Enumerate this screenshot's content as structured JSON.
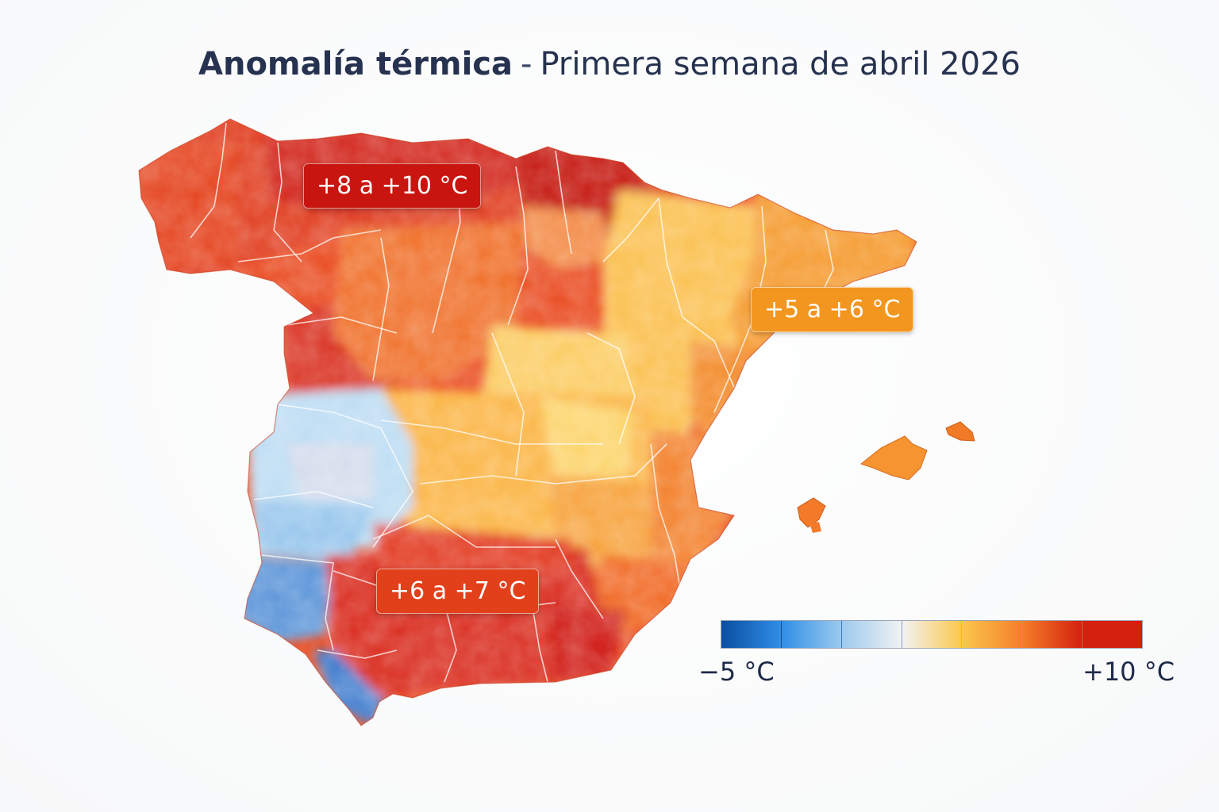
{
  "title": {
    "bold": "Anomalía térmica",
    "separator": "-",
    "rest": "Primera semana de abril 2026"
  },
  "badges": {
    "north": "+8 a +10 °C",
    "east": "+5 a +6 °C",
    "south": "+6 a +7 °C"
  },
  "colors": {
    "north_deep": "#c8150f",
    "north": "#e0401c",
    "center_orange": "#f5922a",
    "center_yellow": "#fbc654",
    "east_orange": "#f49a2c",
    "west_light_blue": "#bcdcf3",
    "southwest_blue": "#5591d6",
    "south_red": "#d9281a",
    "southeast_orange": "#f06d21"
  },
  "legend": {
    "min_label": "−5 °C",
    "max_label": "+10 °C",
    "swatches": [
      "#0a4ea0",
      "#2f8ee6",
      "#9ccaee",
      "#f2f2f2",
      "#fbc84d",
      "#f57f2a",
      "#d4200f"
    ]
  }
}
